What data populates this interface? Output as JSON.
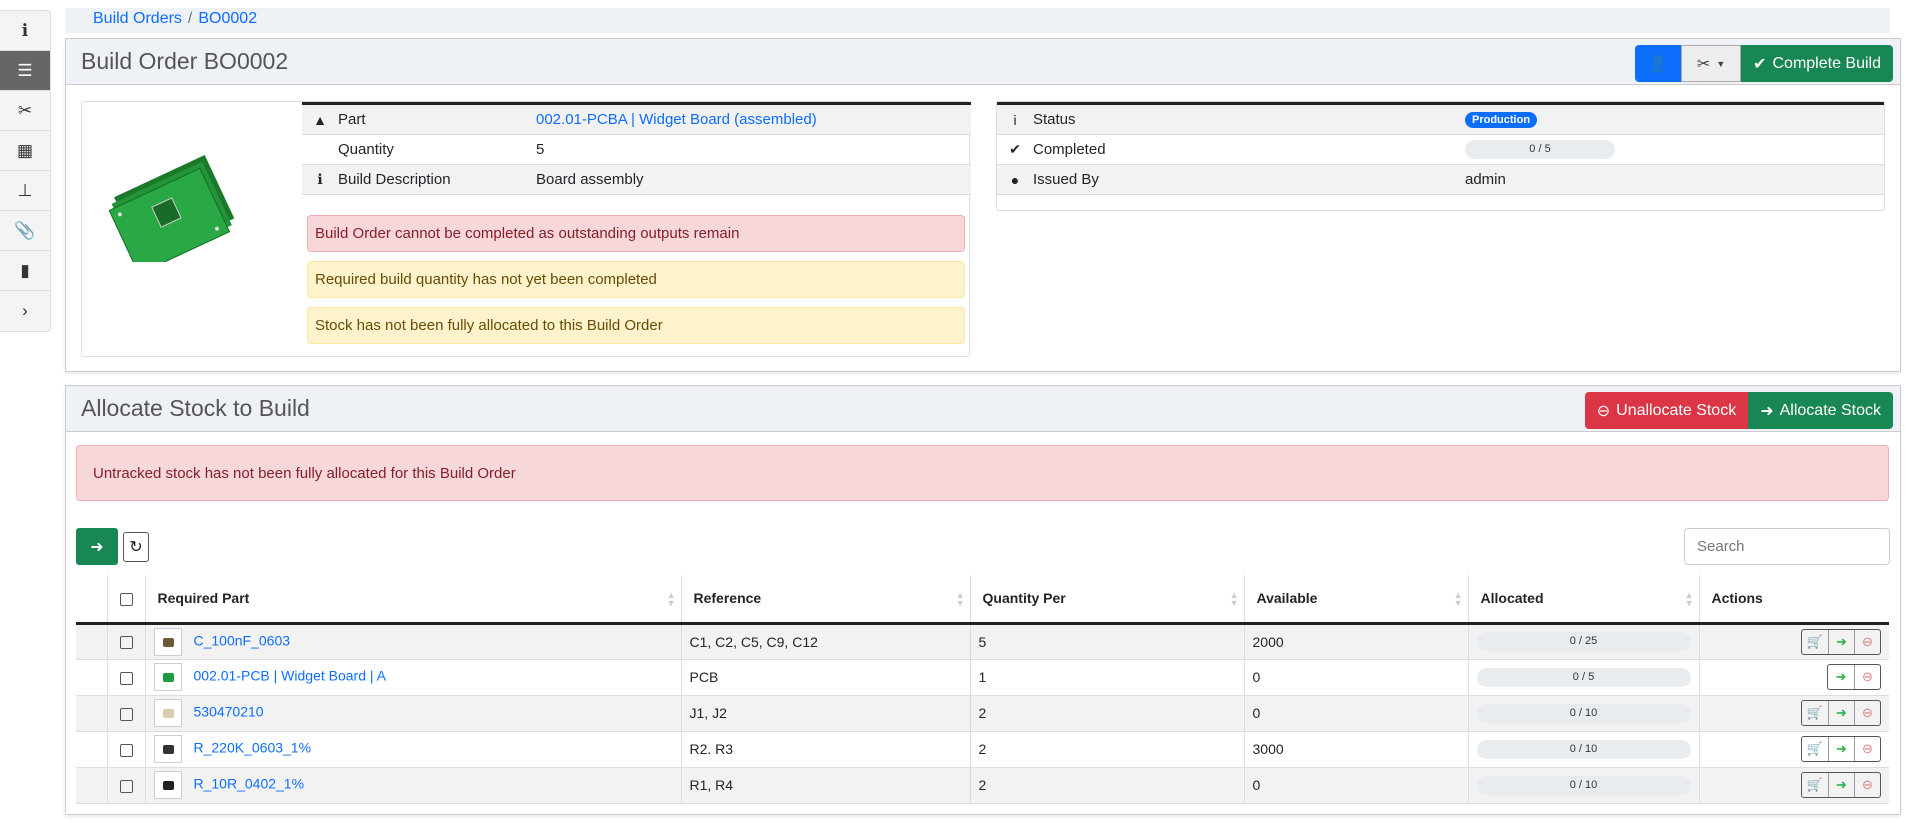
{
  "sidebar": {
    "items": [
      {
        "icon": "info-icon",
        "glyph": "ℹ"
      },
      {
        "icon": "list-check-icon",
        "glyph": "☰",
        "active": true
      },
      {
        "icon": "tools-icon",
        "glyph": "✂"
      },
      {
        "icon": "boxes-icon",
        "glyph": "▦"
      },
      {
        "icon": "sitemap-icon",
        "glyph": "⊥"
      },
      {
        "icon": "paperclip-icon",
        "glyph": "📎"
      },
      {
        "icon": "clipboard-icon",
        "glyph": "▮"
      },
      {
        "icon": "chevron-right-icon",
        "glyph": "›"
      }
    ]
  },
  "breadcrumb": {
    "items": [
      "Build Orders",
      "BO0002"
    ],
    "separator": "/"
  },
  "header": {
    "title": "Build Order BO0002",
    "complete_label": "Complete Build"
  },
  "details": {
    "rows": [
      {
        "label": "Part",
        "value": "002.01-PCBA | Widget Board (assembled)",
        "link": true
      },
      {
        "label": "Quantity",
        "value": "5"
      },
      {
        "label": "Build Description",
        "value": "Board assembly"
      }
    ],
    "alerts": [
      {
        "type": "danger",
        "text": "Build Order cannot be completed as outstanding outputs remain"
      },
      {
        "type": "warning",
        "text": "Required build quantity has not yet been completed"
      },
      {
        "type": "warning",
        "text": "Stock has not been fully allocated to this Build Order"
      }
    ]
  },
  "status": {
    "rows": [
      {
        "label": "Status",
        "badge": "Production"
      },
      {
        "label": "Completed",
        "progress": "0 / 5",
        "progress_fraction": 0
      },
      {
        "label": "Issued By",
        "value": "admin"
      }
    ]
  },
  "allocate": {
    "title": "Allocate Stock to Build",
    "unallocate_label": "Unallocate Stock",
    "allocate_label": "Allocate Stock",
    "alert": "Untracked stock has not been fully allocated for this Build Order",
    "search_placeholder": "Search",
    "columns": [
      "Required Part",
      "Reference",
      "Quantity Per",
      "Available",
      "Allocated",
      "Actions"
    ],
    "rows": [
      {
        "part": "C_100nF_0603",
        "reference": "C1, C2, C5, C9, C12",
        "qty": "5",
        "available": "2000",
        "allocated": "0 / 25",
        "cart": true
      },
      {
        "part": "002.01-PCB | Widget Board | A",
        "reference": "PCB",
        "qty": "1",
        "available": "0",
        "allocated": "0 / 5",
        "cart": false
      },
      {
        "part": "530470210",
        "reference": "J1, J2",
        "qty": "2",
        "available": "0",
        "allocated": "0 / 10",
        "cart": true
      },
      {
        "part": "R_220K_0603_1%",
        "reference": "R2. R3",
        "qty": "2",
        "available": "3000",
        "allocated": "0 / 10",
        "cart": true
      },
      {
        "part": "R_10R_0402_1%",
        "reference": "R1, R4",
        "qty": "2",
        "available": "0",
        "allocated": "0 / 10",
        "cart": true
      }
    ]
  },
  "colors": {
    "primary": "#0d6efd",
    "success": "#198754",
    "danger": "#dc3545"
  }
}
